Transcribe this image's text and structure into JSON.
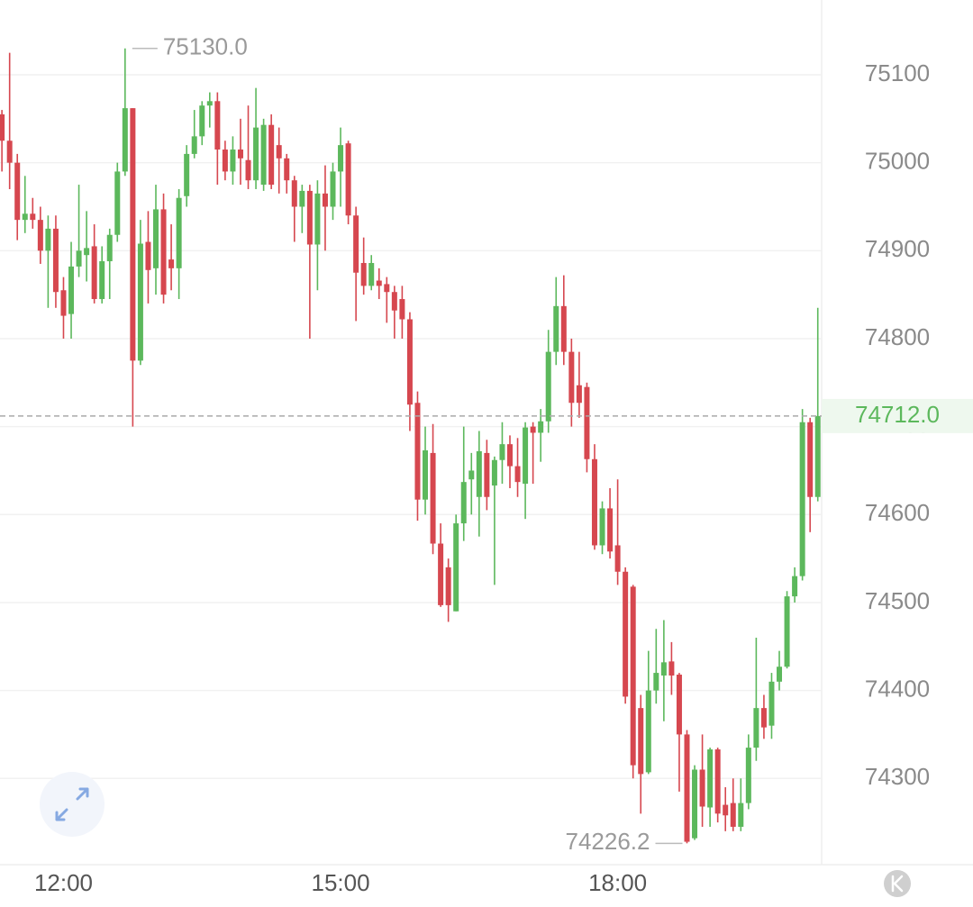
{
  "chart_data": {
    "type": "candlestick",
    "up_color": "#5cb85c",
    "down_color": "#d6474f",
    "grid": true,
    "open": [
      75055,
      75025,
      75000,
      74935,
      74942,
      74935,
      74900,
      74925,
      74855,
      74828,
      74882,
      74895,
      74905,
      74845,
      74888,
      74918,
      74990,
      75062,
      74775,
      74910,
      74880,
      74947,
      74890,
      74880,
      74962,
      75010,
      75030,
      75065,
      75070,
      75015,
      74990,
      75015,
      75003,
      74980,
      74975,
      75043,
      75020,
      75005,
      74980,
      74950,
      74968,
      74907,
      74965,
      74950,
      74990,
      75022,
      74940,
      74886,
      74860,
      74866,
      74862,
      74853,
      74845,
      74822,
      74727,
      74617,
      74670,
      74567,
      74540,
      74490,
      74590,
      74640,
      74620,
      74670,
      74633,
      74662,
      74680,
      74655,
      74635,
      74700,
      74693,
      74706,
      74785,
      74837,
      74785,
      74747,
      74745,
      74663,
      74565,
      74607,
      74565,
      74535,
      74518,
      74380,
      74307,
      74400,
      74417,
      74433,
      74418,
      74350,
      74232,
      74310,
      74267,
      74333,
      74270,
      74272,
      74245,
      74272,
      74335,
      74380,
      74360,
      74410,
      74427,
      74507,
      74530,
      74705,
      74620
    ],
    "high": [
      75060,
      75125,
      75010,
      74985,
      74960,
      74950,
      74940,
      74940,
      74870,
      74910,
      74975,
      74945,
      74930,
      74905,
      74925,
      75000,
      75130,
      75062,
      74935,
      74945,
      74975,
      74965,
      74930,
      74970,
      75020,
      75060,
      75070,
      75080,
      75080,
      75025,
      75030,
      75050,
      75065,
      75085,
      75050,
      75055,
      75040,
      75010,
      74985,
      74975,
      74975,
      74980,
      74997,
      75000,
      75040,
      75025,
      74950,
      74915,
      74895,
      74880,
      74870,
      74860,
      74860,
      74830,
      74740,
      74700,
      74703,
      74590,
      74550,
      74600,
      74700,
      74670,
      74695,
      74685,
      74666,
      74705,
      74690,
      74687,
      74705,
      74705,
      74720,
      74810,
      74870,
      74872,
      74800,
      74785,
      74750,
      74680,
      74615,
      74630,
      74640,
      74540,
      74520,
      74395,
      74445,
      74470,
      74480,
      74455,
      74420,
      74355,
      74315,
      74350,
      74335,
      74335,
      74290,
      74300,
      74300,
      74350,
      74460,
      74395,
      74420,
      74445,
      74513,
      74540,
      74720,
      74710,
      74835
    ],
    "low": [
      74990,
      74970,
      74912,
      74920,
      74925,
      74885,
      74835,
      74835,
      74800,
      74800,
      74870,
      74865,
      74840,
      74840,
      74845,
      74910,
      74985,
      74700,
      74770,
      74840,
      74850,
      74840,
      74855,
      74845,
      74950,
      75005,
      75020,
      75040,
      74975,
      74980,
      74975,
      74975,
      74970,
      74970,
      74968,
      74970,
      74965,
      74965,
      74910,
      74920,
      74800,
      74855,
      74900,
      74935,
      74950,
      74930,
      74820,
      74850,
      74855,
      74845,
      74818,
      74800,
      74800,
      74695,
      74593,
      74600,
      74555,
      74495,
      74478,
      74490,
      74570,
      74600,
      74575,
      74605,
      74520,
      74635,
      74630,
      74620,
      74595,
      74635,
      74660,
      74693,
      74770,
      74770,
      74700,
      74710,
      74648,
      74560,
      74555,
      74550,
      74520,
      74385,
      74300,
      74260,
      74305,
      74385,
      74365,
      74395,
      74285,
      74226.2,
      74230,
      74245,
      74245,
      74250,
      74240,
      74240,
      74240,
      74265,
      74320,
      74345,
      74345,
      74400,
      74425,
      74500,
      74525,
      74580,
      74615
    ],
    "close": [
      75025,
      75000,
      74935,
      74942,
      74935,
      74900,
      74925,
      74853,
      74826,
      74882,
      74900,
      74903,
      74845,
      74888,
      74918,
      74990,
      75062,
      74775,
      74908,
      74878,
      74947,
      74850,
      74880,
      74960,
      75010,
      75030,
      75065,
      75070,
      75015,
      74990,
      75015,
      75005,
      74980,
      75040,
      75043,
      74975,
      75005,
      74980,
      74950,
      74968,
      74907,
      74965,
      74950,
      74990,
      75020,
      74940,
      74875,
      74860,
      74886,
      74860,
      74853,
      74832,
      74822,
      74725,
      74617,
      74673,
      74567,
      74497,
      74497,
      74590,
      74637,
      74650,
      74672,
      74620,
      74662,
      74680,
      74655,
      74637,
      74699,
      74693,
      74706,
      74785,
      74837,
      74785,
      74727,
      74727,
      74663,
      74565,
      74607,
      74558,
      74535,
      74393,
      74315,
      74305,
      74400,
      74420,
      74432,
      74417,
      74350,
      74228,
      74310,
      74268,
      74333,
      74260,
      74258,
      74245,
      74272,
      74335,
      74380,
      74358,
      74410,
      74427,
      74507,
      74530,
      74705,
      74620,
      74712
    ],
    "ylim": [
      74204,
      75185
    ],
    "yticks": [
      74300,
      74400,
      74500,
      74600,
      74700,
      74800,
      74900,
      75000,
      75100
    ],
    "xlim": [
      -0.25,
      106.5
    ],
    "xticks": [
      {
        "value": 8,
        "label": "12:00"
      },
      {
        "value": 44,
        "label": "15:00"
      },
      {
        "value": 80,
        "label": "18:00"
      }
    ],
    "high_label": "75130.0",
    "low_label": "74226.2",
    "last_price_label": "74712.0"
  }
}
